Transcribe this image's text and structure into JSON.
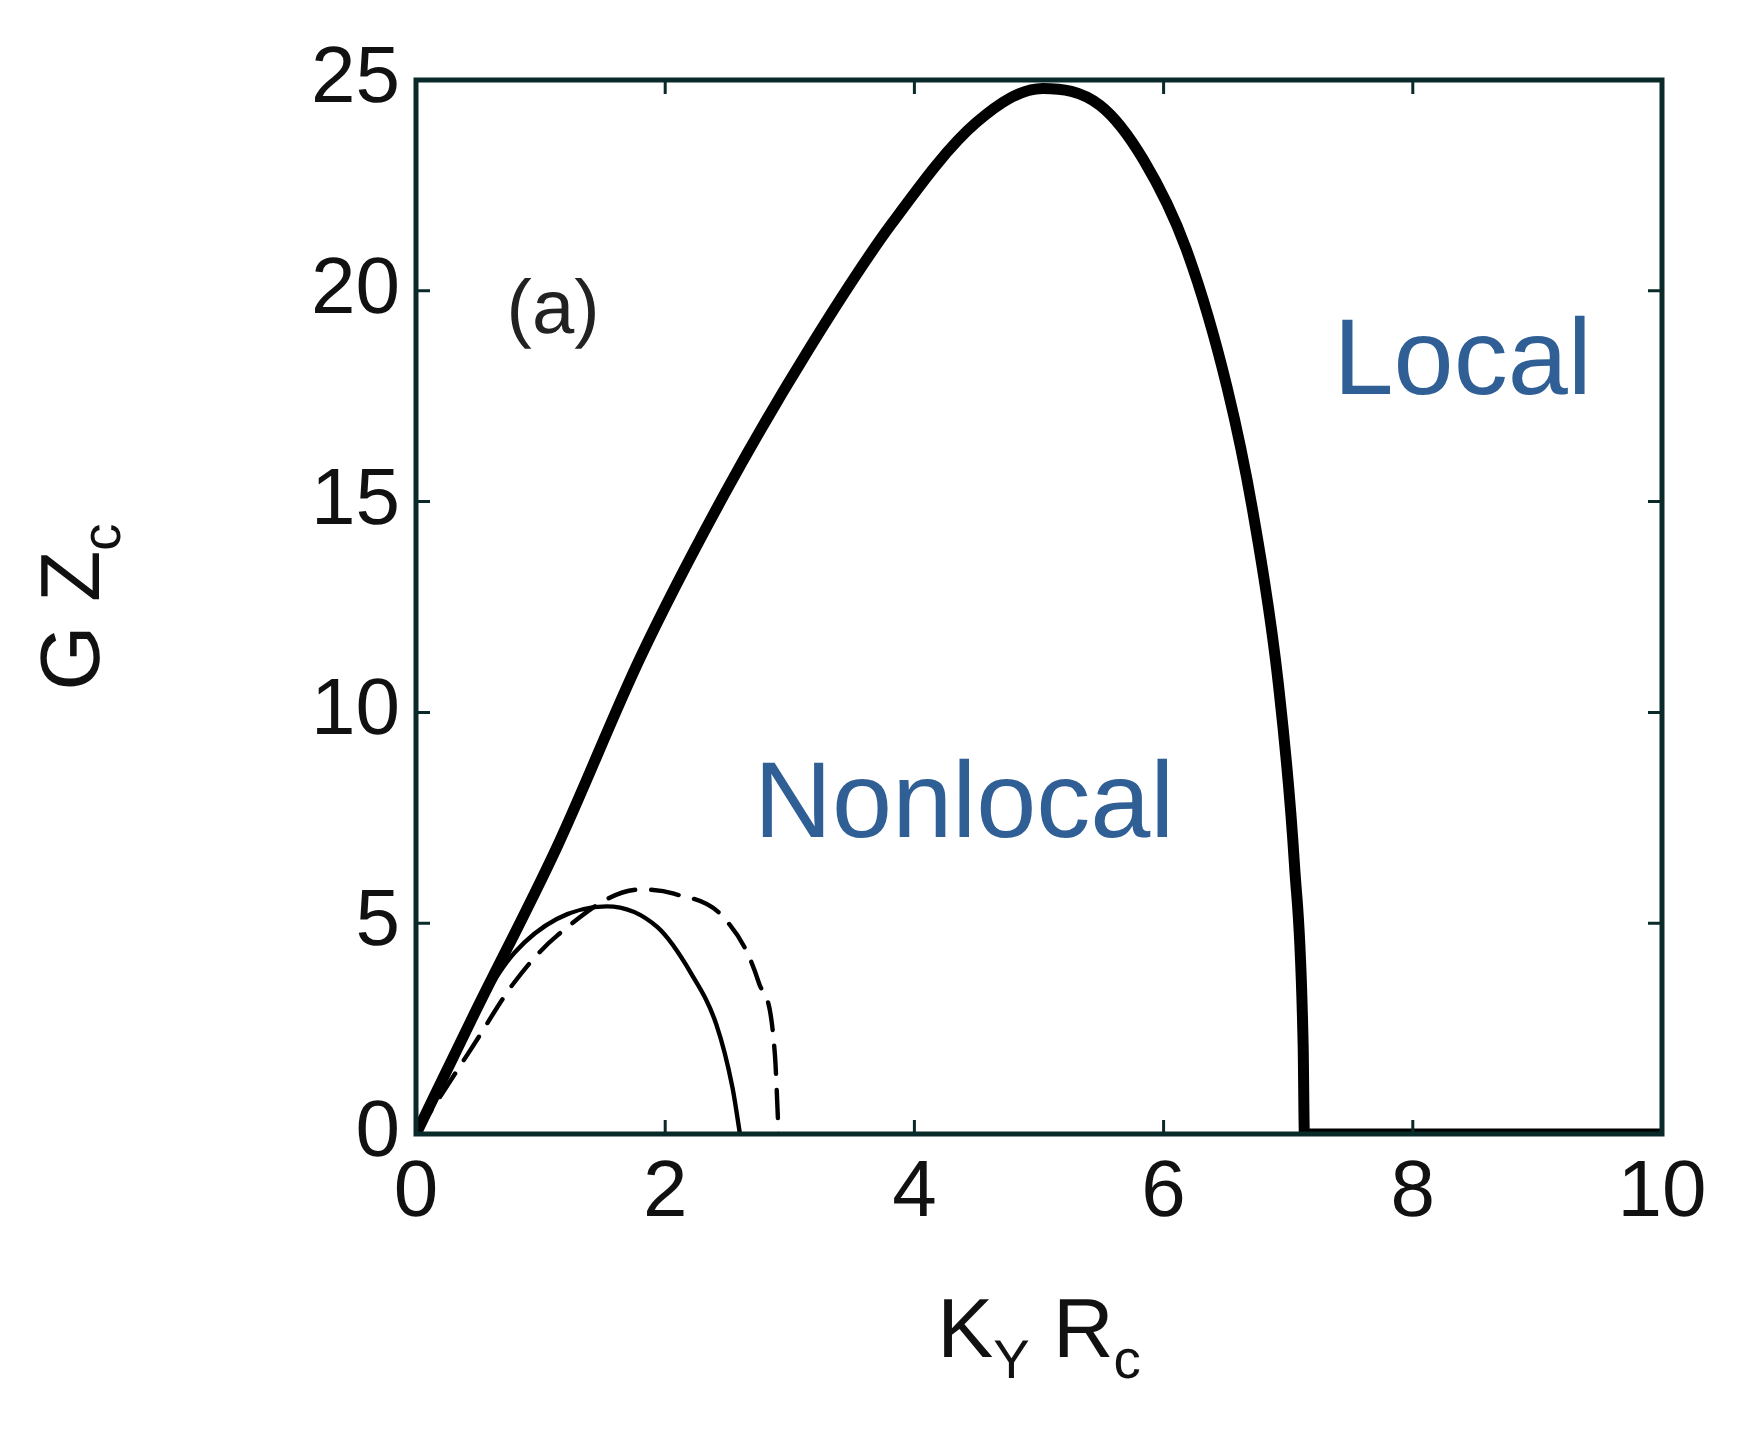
{
  "chart_data": {
    "type": "line",
    "xlabel": "K$_{Y}$ R$_{c}$",
    "ylabel": "G Z$_{c}$",
    "xlim": [
      0,
      10
    ],
    "ylim": [
      0,
      25
    ],
    "xticks": [
      0,
      2,
      4,
      6,
      8,
      10
    ],
    "yticks": [
      0,
      5,
      10,
      15,
      20,
      25
    ],
    "grid": false,
    "legend": false,
    "marker": "none",
    "series": [
      {
        "color": "#000000",
        "line_style": "solid",
        "x": [
          0,
          0.46,
          1.13,
          1.8,
          2.48,
          3.15,
          3.82,
          4.5,
          5.03,
          5.49,
          5.84,
          6.18,
          6.51,
          6.72,
          6.92,
          7.05,
          7.12,
          7.13,
          10
        ],
        "values": [
          0,
          2.8,
          6.8,
          11.3,
          15.2,
          18.6,
          21.6,
          24.0,
          24.8,
          24.4,
          23.1,
          21.0,
          17.7,
          14.7,
          10.7,
          6.4,
          2.1,
          0,
          0
        ]
      },
      {
        "color": "#000000",
        "line_style": "solid",
        "x": [
          0,
          0.3,
          0.6,
          0.79,
          1.13,
          1.53,
          1.94,
          2.21,
          2.41,
          2.54,
          2.6
        ],
        "values": [
          0,
          1.8,
          3.5,
          4.3,
          5.1,
          5.4,
          4.9,
          3.8,
          2.6,
          1.1,
          0
        ]
      },
      {
        "color": "#000000",
        "line_style": "dashed",
        "x": [
          0,
          0.46,
          0.79,
          1.13,
          1.8,
          2.07,
          2.48,
          2.75,
          2.88,
          2.91
        ],
        "values": [
          0,
          2.1,
          3.6,
          4.7,
          5.8,
          5.7,
          5.1,
          3.6,
          1.9,
          0
        ]
      }
    ],
    "annotations": [
      "(a)",
      "Local",
      "Nonlocal"
    ]
  }
}
